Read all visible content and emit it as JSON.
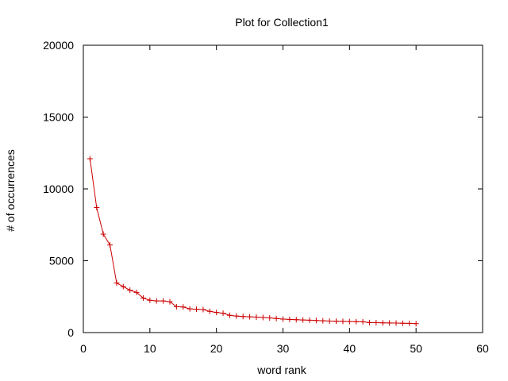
{
  "chart_data": {
    "type": "line",
    "title": "Plot for Collection1",
    "xlabel": "word rank",
    "ylabel": "# of occurrences",
    "xlim": [
      0,
      60
    ],
    "ylim": [
      0,
      20000
    ],
    "x_ticks": [
      "0",
      "10",
      "20",
      "30",
      "40",
      "50",
      "60"
    ],
    "y_ticks": [
      "0",
      "5000",
      "10000",
      "15000",
      "20000"
    ],
    "grid": false,
    "legend": "none",
    "series_color": "#cc0000",
    "marker": "plus",
    "series": [
      {
        "x": [
          1,
          2,
          3,
          4,
          5,
          6,
          7,
          8,
          9,
          10,
          11,
          12,
          13,
          14,
          15,
          16,
          17,
          18,
          19,
          20,
          21,
          22,
          23,
          24,
          25,
          26,
          27,
          28,
          29,
          30,
          31,
          32,
          33,
          34,
          35,
          36,
          37,
          38,
          39,
          40,
          41,
          42,
          43,
          44,
          45,
          46,
          47,
          48,
          49,
          50
        ],
        "values": [
          12100,
          8700,
          6850,
          6100,
          3450,
          3200,
          2950,
          2800,
          2400,
          2250,
          2200,
          2200,
          2150,
          1800,
          1780,
          1650,
          1620,
          1600,
          1480,
          1400,
          1350,
          1200,
          1150,
          1120,
          1100,
          1080,
          1050,
          1020,
          980,
          940,
          920,
          900,
          880,
          860,
          840,
          820,
          800,
          790,
          780,
          770,
          760,
          750,
          700,
          690,
          680,
          670,
          660,
          650,
          640,
          620
        ]
      }
    ]
  }
}
